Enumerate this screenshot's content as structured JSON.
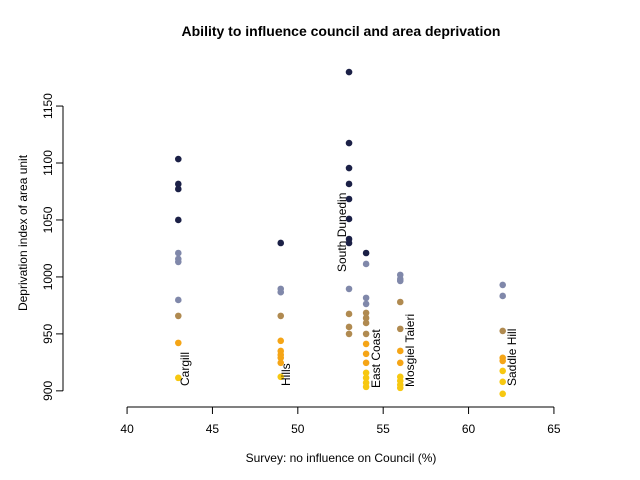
{
  "chart_data": {
    "type": "scatter",
    "title": "Ability to influence council and area deprivation",
    "x_label": "Survey: no influence on Council (%)",
    "y_label": "Deprivation index of area unit",
    "xlim": [
      39,
      66
    ],
    "ylim": [
      886.7,
      1191.3
    ],
    "xticks": [
      40,
      45,
      50,
      55,
      60,
      65
    ],
    "yticks": [
      900,
      950,
      1000,
      1050,
      1100,
      1150
    ],
    "annotations": [
      "Cargill",
      "Hills",
      "South Dunedin",
      "East Coast",
      "Mosgiel Taieri",
      "Saddle Hill"
    ],
    "series": [
      {
        "color": "#1b2046",
        "x": [
          43,
          43,
          43,
          43,
          49,
          53,
          53,
          53,
          53,
          53,
          53,
          53,
          53,
          54
        ],
        "values": [
          1103.5,
          1081.6,
          1077.2,
          1050,
          1029.8,
          1179.8,
          1117.5,
          1095.6,
          1081.6,
          1068.4,
          1050.9,
          1033.3,
          1029.8,
          1021
        ]
      },
      {
        "color": "#8088aa",
        "x": [
          43,
          43,
          43,
          43,
          49,
          49,
          53,
          54,
          54,
          54,
          56,
          56,
          56,
          62,
          62
        ],
        "values": [
          1021,
          1015.8,
          1013.2,
          979.8,
          989.5,
          986.6,
          989.5,
          1011.4,
          981.6,
          976.3,
          1001.8,
          998.2,
          996.5,
          993,
          983.3
        ]
      },
      {
        "color": "#b08a50",
        "x": [
          43,
          49,
          53,
          53,
          53,
          54,
          54,
          54,
          54,
          56,
          56,
          62
        ],
        "values": [
          965.8,
          965.8,
          967.5,
          956.1,
          950,
          968.4,
          964,
          959.6,
          950,
          978,
          954.4,
          952.6
        ]
      },
      {
        "color": "#f5a516",
        "x": [
          43,
          49,
          49,
          49,
          49,
          49,
          54,
          54,
          54,
          56,
          56,
          62,
          62
        ],
        "values": [
          942.1,
          943.9,
          935,
          931.6,
          929,
          924.6,
          941.2,
          932.5,
          924.6,
          935,
          924.6,
          929,
          926.3
        ]
      },
      {
        "color": "#f7c811",
        "x": [
          43,
          49,
          54,
          54,
          54,
          54,
          56,
          56,
          56,
          56,
          62,
          62,
          62
        ],
        "values": [
          911.4,
          912.3,
          915.8,
          911.4,
          907,
          903.5,
          912.3,
          908.8,
          905.3,
          902.6,
          917.5,
          907.9,
          897.4
        ]
      }
    ]
  }
}
